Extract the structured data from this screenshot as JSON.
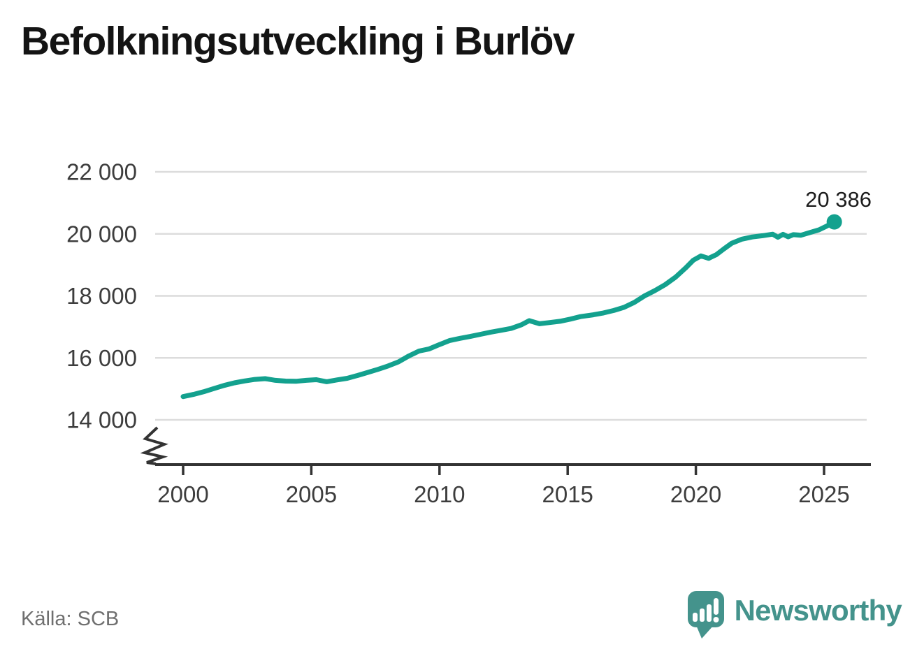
{
  "title": "Befolkningsutveckling i Burlöv",
  "source": "Källa: SCB",
  "branding": {
    "name": "Newsworthy",
    "icon": "newsworthy-bubble-chart-icon"
  },
  "colors": {
    "line": "#13a18e",
    "grid": "#dcdcdc",
    "axis": "#333333",
    "tick-text": "#3d3d3d",
    "title-text": "#141414",
    "source-text": "#6f6f6f",
    "annotation-text": "#1c1c1c",
    "brand": "#44938c"
  },
  "chart_data": {
    "type": "line",
    "title": "Befolkningsutveckling i Burlöv",
    "xlabel": "",
    "ylabel": "",
    "grid": "horizontal",
    "legend": "none",
    "axis_break": true,
    "ylim": [
      14000,
      22000
    ],
    "xlim": [
      1998.9,
      2026.8
    ],
    "y_ticks": [
      14000,
      16000,
      18000,
      20000,
      22000
    ],
    "y_tick_labels": [
      "14 000",
      "16 000",
      "18 000",
      "20 000",
      "22 000"
    ],
    "x_ticks": [
      2000,
      2005,
      2010,
      2015,
      2020,
      2025
    ],
    "x_tick_labels": [
      "2000",
      "2005",
      "2010",
      "2015",
      "2020",
      "2025"
    ],
    "series": [
      {
        "name": "Befolkning i Burlöv",
        "end_value": 20386,
        "end_label": "20 386",
        "points": [
          [
            2000.0,
            14750
          ],
          [
            2000.4,
            14820
          ],
          [
            2000.8,
            14905
          ],
          [
            2001.2,
            15010
          ],
          [
            2001.6,
            15110
          ],
          [
            2002.0,
            15195
          ],
          [
            2002.4,
            15255
          ],
          [
            2002.8,
            15305
          ],
          [
            2003.2,
            15330
          ],
          [
            2003.6,
            15275
          ],
          [
            2004.0,
            15250
          ],
          [
            2004.4,
            15245
          ],
          [
            2004.8,
            15275
          ],
          [
            2005.2,
            15295
          ],
          [
            2005.6,
            15230
          ],
          [
            2006.0,
            15290
          ],
          [
            2006.4,
            15340
          ],
          [
            2006.8,
            15430
          ],
          [
            2007.2,
            15530
          ],
          [
            2007.6,
            15630
          ],
          [
            2008.0,
            15740
          ],
          [
            2008.4,
            15870
          ],
          [
            2008.8,
            16060
          ],
          [
            2009.2,
            16220
          ],
          [
            2009.6,
            16290
          ],
          [
            2010.0,
            16430
          ],
          [
            2010.4,
            16560
          ],
          [
            2010.8,
            16630
          ],
          [
            2011.2,
            16690
          ],
          [
            2011.6,
            16760
          ],
          [
            2012.0,
            16830
          ],
          [
            2012.4,
            16890
          ],
          [
            2012.8,
            16950
          ],
          [
            2013.2,
            17070
          ],
          [
            2013.5,
            17200
          ],
          [
            2013.9,
            17100
          ],
          [
            2014.3,
            17140
          ],
          [
            2014.7,
            17180
          ],
          [
            2015.1,
            17250
          ],
          [
            2015.5,
            17330
          ],
          [
            2016.0,
            17390
          ],
          [
            2016.4,
            17450
          ],
          [
            2016.8,
            17530
          ],
          [
            2017.2,
            17630
          ],
          [
            2017.6,
            17790
          ],
          [
            2018.0,
            18000
          ],
          [
            2018.4,
            18170
          ],
          [
            2018.8,
            18360
          ],
          [
            2019.2,
            18600
          ],
          [
            2019.6,
            18900
          ],
          [
            2019.9,
            19150
          ],
          [
            2020.2,
            19290
          ],
          [
            2020.5,
            19210
          ],
          [
            2020.8,
            19330
          ],
          [
            2021.1,
            19520
          ],
          [
            2021.4,
            19700
          ],
          [
            2021.8,
            19830
          ],
          [
            2022.2,
            19900
          ],
          [
            2022.6,
            19940
          ],
          [
            2023.0,
            19990
          ],
          [
            2023.2,
            19890
          ],
          [
            2023.4,
            19985
          ],
          [
            2023.6,
            19905
          ],
          [
            2023.8,
            19975
          ],
          [
            2024.1,
            19955
          ],
          [
            2024.4,
            20030
          ],
          [
            2024.8,
            20130
          ],
          [
            2025.1,
            20250
          ],
          [
            2025.4,
            20386
          ]
        ]
      }
    ]
  }
}
